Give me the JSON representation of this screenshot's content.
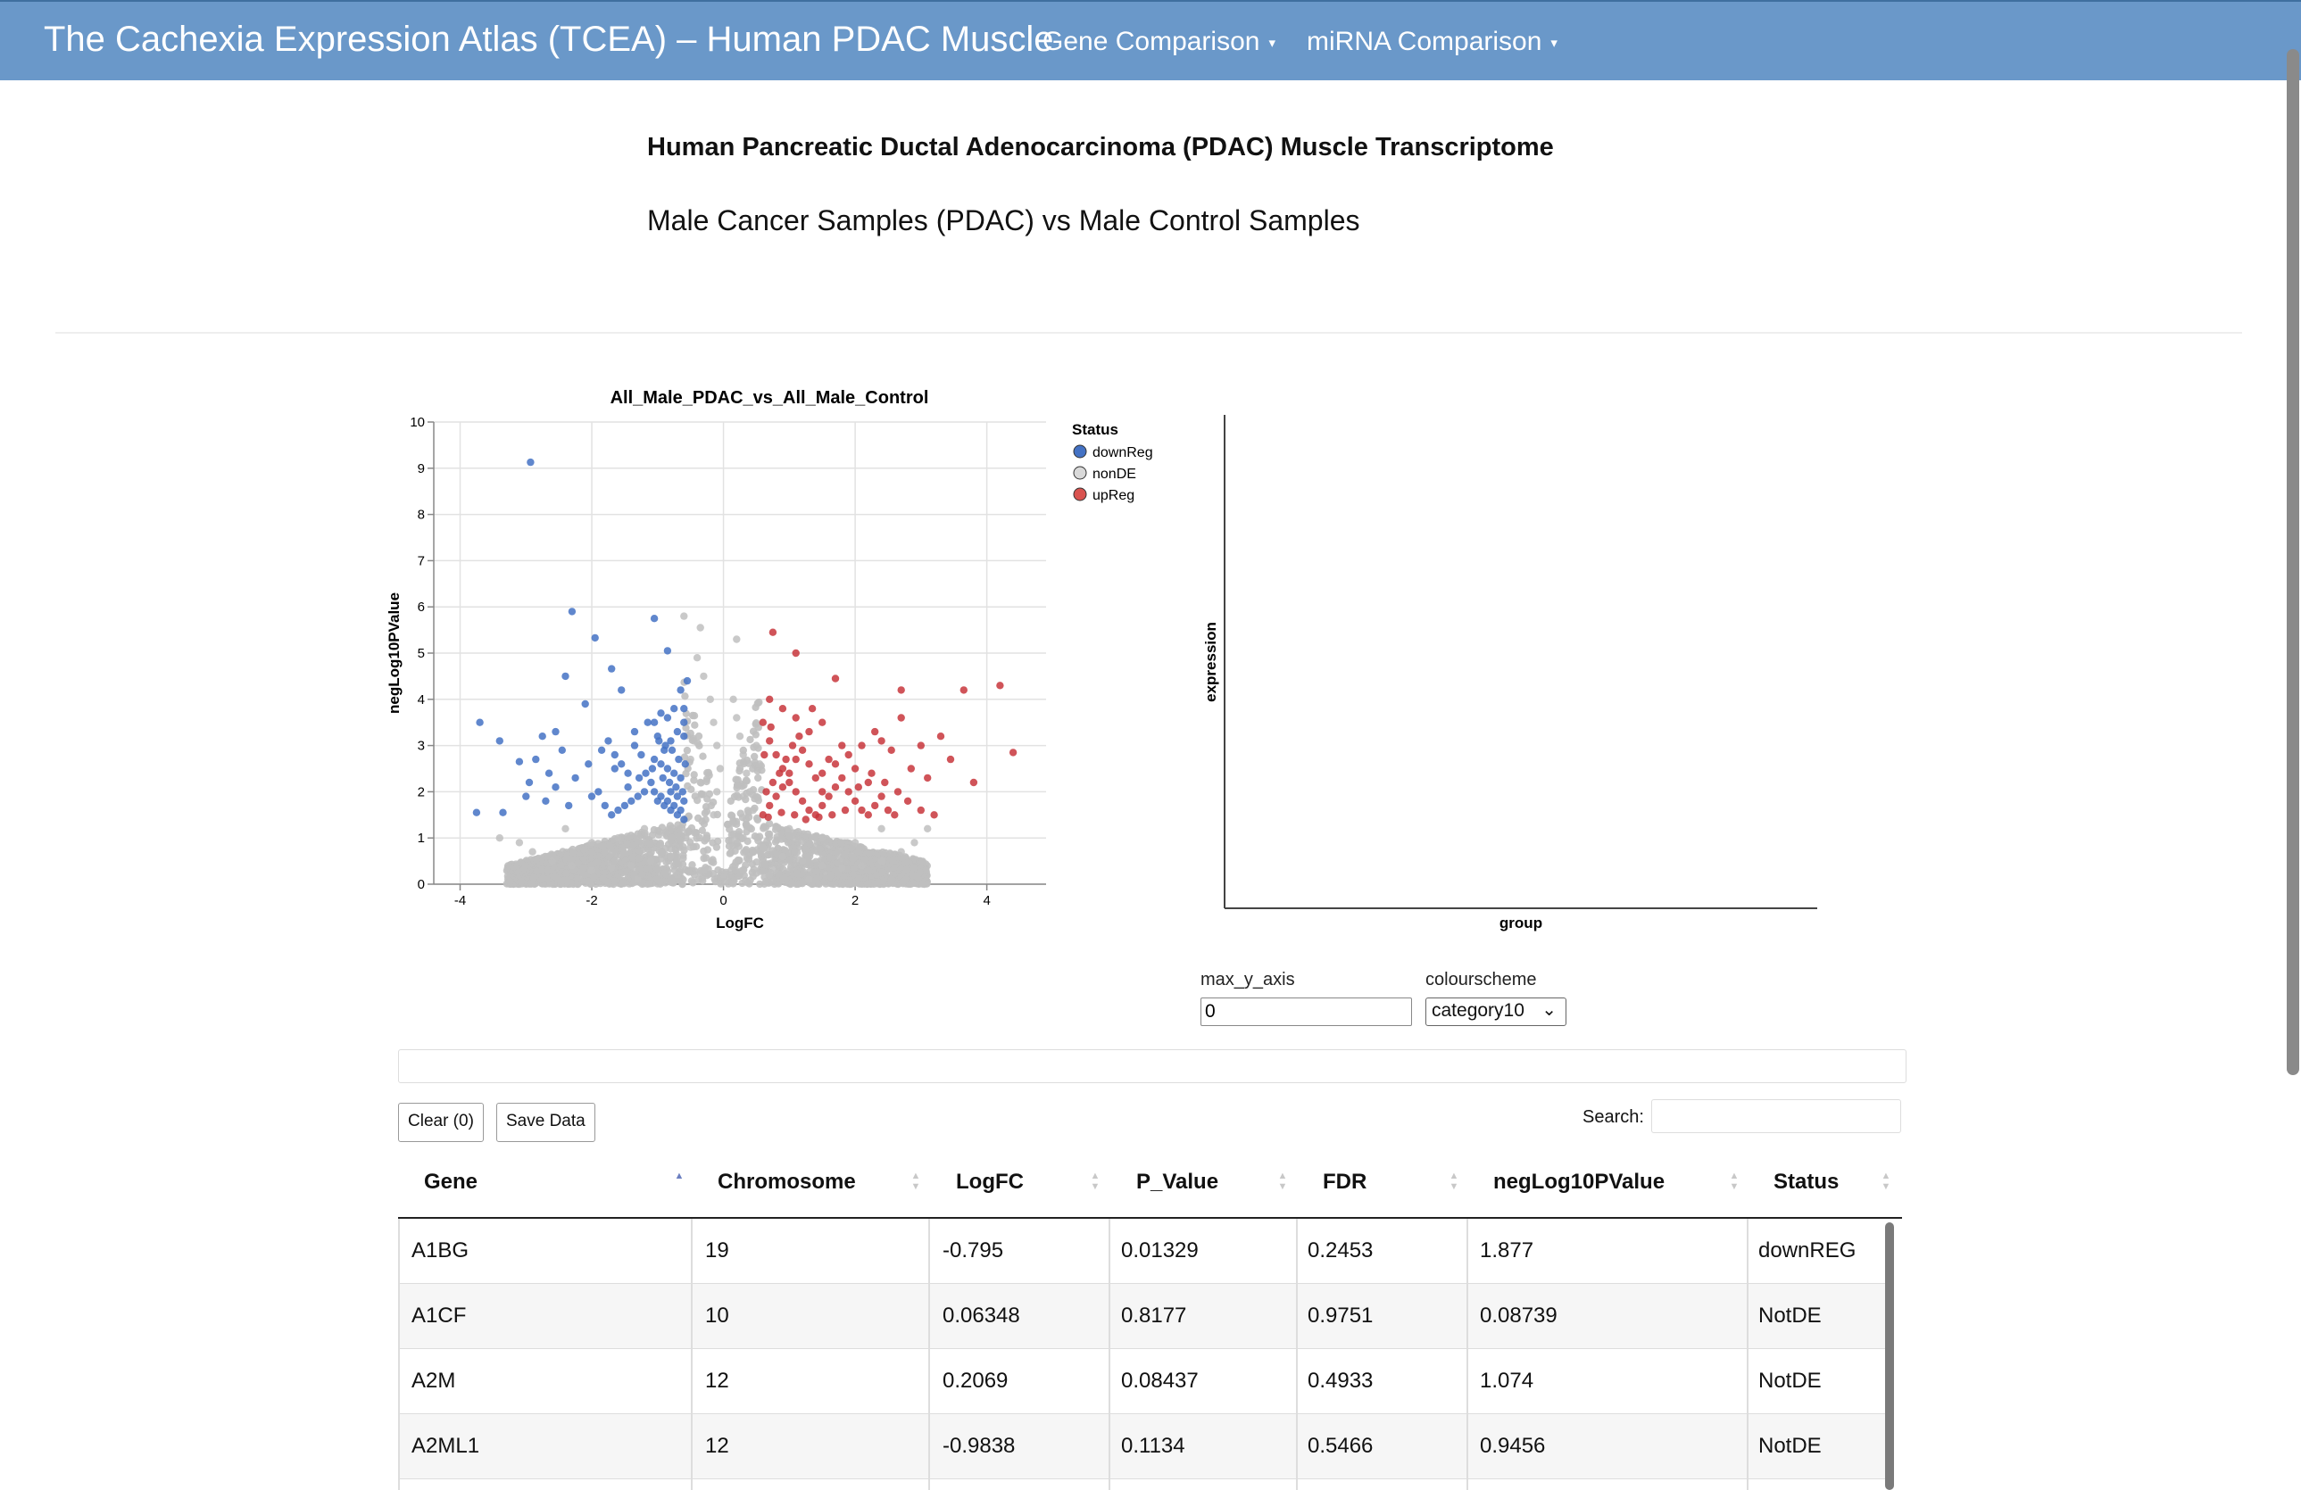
{
  "navbar": {
    "brand": "The Cachexia Expression Atlas (TCEA) – Human PDAC Muscle",
    "menus": [
      "Gene Comparison",
      "miRNA Comparison"
    ],
    "caret": "▾"
  },
  "header": {
    "title": "Human Pancreatic Ductal Adenocarcinoma (PDAC) Muscle Transcriptome",
    "subtitle": "Male Cancer Samples (PDAC) vs Male Control Samples"
  },
  "colors": {
    "navbar": "#6a98c9",
    "downReg": "#4472c4",
    "nonDE": "#bfbfbf",
    "upReg": "#c8363c"
  },
  "chart_data": [
    {
      "type": "scatter",
      "title": "All_Male_PDAC_vs_All_Male_Control",
      "xlabel": "LogFC",
      "ylabel": "negLog10PValue",
      "xlim": [
        -4.4,
        4.9
      ],
      "ylim": [
        0,
        10
      ],
      "xticks": [
        -4,
        -2,
        0,
        2,
        4
      ],
      "yticks": [
        0,
        1,
        2,
        3,
        4,
        5,
        6,
        7,
        8,
        9,
        10
      ],
      "grid": true,
      "legend": {
        "title": "Status",
        "position": "right",
        "entries": [
          "downReg",
          "nonDE",
          "upReg"
        ]
      },
      "series": [
        {
          "name": "downReg",
          "points": [
            [
              -2.93,
              9.13
            ],
            [
              -2.3,
              5.9
            ],
            [
              -1.95,
              5.33
            ],
            [
              -1.7,
              4.66
            ],
            [
              -1.05,
              5.75
            ],
            [
              -0.85,
              5.05
            ],
            [
              -2.4,
              4.5
            ],
            [
              -2.1,
              3.9
            ],
            [
              -1.55,
              4.2
            ],
            [
              -3.7,
              3.5
            ],
            [
              -3.4,
              3.1
            ],
            [
              -3.1,
              2.65
            ],
            [
              -2.95,
              2.2
            ],
            [
              -3.35,
              1.55
            ],
            [
              -3.75,
              1.55
            ],
            [
              -2.7,
              1.8
            ],
            [
              -2.55,
              2.1
            ],
            [
              -2.35,
              1.7
            ],
            [
              -2.75,
              3.2
            ],
            [
              -2.55,
              3.3
            ],
            [
              -2.25,
              2.3
            ],
            [
              -2.05,
              2.6
            ],
            [
              -1.85,
              2.9
            ],
            [
              -1.65,
              2.5
            ],
            [
              -1.45,
              2.1
            ],
            [
              -1.35,
              3.0
            ],
            [
              -1.25,
              2.8
            ],
            [
              -1.15,
              3.5
            ],
            [
              -1.05,
              2.7
            ],
            [
              -0.95,
              2.6
            ],
            [
              -0.85,
              2.5
            ],
            [
              -0.75,
              2.4
            ],
            [
              -0.65,
              2.3
            ],
            [
              -0.6,
              3.2
            ],
            [
              -0.55,
              4.4
            ],
            [
              -0.65,
              4.2
            ],
            [
              -0.75,
              3.8
            ],
            [
              -0.85,
              3.6
            ],
            [
              -0.95,
              3.7
            ],
            [
              -1.0,
              3.2
            ],
            [
              -1.1,
              2.2
            ],
            [
              -1.2,
              2.0
            ],
            [
              -1.3,
              1.9
            ],
            [
              -1.4,
              1.8
            ],
            [
              -1.5,
              1.7
            ],
            [
              -1.6,
              1.6
            ],
            [
              -1.7,
              1.5
            ],
            [
              -1.8,
              1.7
            ],
            [
              -1.9,
              2.0
            ],
            [
              -2.0,
              1.9
            ],
            [
              -0.6,
              1.4
            ],
            [
              -0.7,
              1.5
            ],
            [
              -0.8,
              1.6
            ],
            [
              -0.9,
              1.7
            ],
            [
              -1.0,
              1.8
            ],
            [
              -0.62,
              2.0
            ],
            [
              -0.72,
              2.1
            ],
            [
              -0.82,
              2.2
            ],
            [
              -0.92,
              2.3
            ],
            [
              -0.58,
              2.6
            ],
            [
              -0.68,
              2.7
            ],
            [
              -0.78,
              2.9
            ],
            [
              -0.88,
              3.0
            ],
            [
              -0.98,
              3.1
            ],
            [
              -1.08,
              2.5
            ],
            [
              -1.18,
              2.4
            ],
            [
              -1.28,
              2.3
            ],
            [
              -0.6,
              1.8
            ],
            [
              -0.7,
              1.9
            ],
            [
              -0.8,
              2.0
            ],
            [
              -0.65,
              1.6
            ],
            [
              -0.75,
              1.7
            ],
            [
              -0.85,
              1.8
            ],
            [
              -0.95,
              1.9
            ],
            [
              -1.05,
              2.0
            ],
            [
              -0.6,
              3.5
            ],
            [
              -0.6,
              3.8
            ],
            [
              -0.7,
              3.3
            ],
            [
              -0.8,
              3.1
            ],
            [
              -0.9,
              2.9
            ],
            [
              -1.45,
              2.4
            ],
            [
              -1.55,
              2.6
            ],
            [
              -1.65,
              2.8
            ],
            [
              -1.75,
              3.1
            ],
            [
              -2.45,
              2.9
            ],
            [
              -2.65,
              2.4
            ],
            [
              -2.85,
              2.7
            ],
            [
              -3.0,
              1.9
            ],
            [
              -1.35,
              3.3
            ],
            [
              -1.05,
              3.5
            ]
          ]
        },
        {
          "name": "nonDE",
          "points": [
            [
              -0.6,
              5.8
            ],
            [
              -0.35,
              5.55
            ],
            [
              0.2,
              5.3
            ],
            [
              -0.4,
              4.9
            ],
            [
              -0.3,
              4.5
            ],
            [
              -0.2,
              4.0
            ],
            [
              -0.15,
              3.5
            ],
            [
              -0.1,
              3.0
            ],
            [
              -0.05,
              2.5
            ],
            [
              -0.1,
              2.0
            ],
            [
              -0.15,
              1.5
            ],
            [
              0.15,
              4.0
            ],
            [
              0.2,
              3.6
            ],
            [
              0.25,
              3.2
            ],
            [
              0.3,
              2.8
            ],
            [
              0.35,
              2.4
            ],
            [
              0.4,
              2.0
            ],
            [
              0.45,
              1.6
            ],
            [
              -0.25,
              1.0
            ],
            [
              -0.5,
              0.8
            ],
            [
              -0.8,
              0.6
            ],
            [
              -1.1,
              0.5
            ],
            [
              -1.4,
              0.4
            ],
            [
              -1.7,
              0.35
            ],
            [
              -2.0,
              0.3
            ],
            [
              -2.3,
              0.4
            ],
            [
              -2.6,
              0.5
            ],
            [
              -2.9,
              0.7
            ],
            [
              -3.1,
              0.9
            ],
            [
              -3.4,
              1.0
            ],
            [
              0.3,
              1.0
            ],
            [
              0.6,
              0.8
            ],
            [
              0.9,
              0.6
            ],
            [
              1.2,
              0.5
            ],
            [
              1.5,
              0.4
            ],
            [
              1.8,
              0.35
            ],
            [
              2.1,
              0.4
            ],
            [
              2.4,
              0.5
            ],
            [
              2.7,
              0.7
            ],
            [
              2.9,
              0.9
            ],
            [
              3.1,
              1.2
            ],
            [
              -1.2,
              1.2
            ],
            [
              -1.6,
              1.0
            ],
            [
              -2.0,
              0.9
            ],
            [
              1.0,
              1.2
            ],
            [
              1.5,
              1.0
            ],
            [
              2.0,
              0.9
            ],
            [
              -0.3,
              0.3
            ],
            [
              0.0,
              0.2
            ],
            [
              0.3,
              0.3
            ],
            [
              -0.7,
              0.2
            ],
            [
              0.7,
              0.2
            ],
            [
              -1.3,
              0.1
            ],
            [
              1.3,
              0.1
            ],
            [
              -2.4,
              1.2
            ],
            [
              2.4,
              1.2
            ],
            [
              -0.45,
              3.1
            ],
            [
              0.5,
              3.0
            ],
            [
              0.55,
              2.6
            ],
            [
              -0.5,
              2.7
            ],
            [
              -0.35,
              2.2
            ],
            [
              0.3,
              1.9
            ]
          ]
        },
        {
          "name": "upReg",
          "points": [
            [
              0.75,
              5.45
            ],
            [
              1.1,
              5.0
            ],
            [
              1.7,
              4.45
            ],
            [
              2.7,
              4.2
            ],
            [
              3.65,
              4.2
            ],
            [
              4.2,
              4.3
            ],
            [
              4.4,
              2.85
            ],
            [
              2.7,
              3.6
            ],
            [
              3.3,
              3.2
            ],
            [
              3.0,
              3.0
            ],
            [
              3.45,
              2.7
            ],
            [
              3.8,
              2.2
            ],
            [
              3.1,
              2.3
            ],
            [
              2.55,
              2.9
            ],
            [
              2.4,
              3.1
            ],
            [
              2.3,
              3.3
            ],
            [
              2.1,
              3.0
            ],
            [
              1.9,
              2.8
            ],
            [
              1.7,
              2.6
            ],
            [
              1.5,
              2.4
            ],
            [
              1.3,
              3.3
            ],
            [
              1.1,
              3.6
            ],
            [
              0.9,
              3.8
            ],
            [
              0.7,
              4.0
            ],
            [
              0.6,
              3.5
            ],
            [
              0.7,
              3.1
            ],
            [
              0.8,
              2.8
            ],
            [
              0.9,
              2.5
            ],
            [
              1.0,
              2.2
            ],
            [
              1.1,
              2.0
            ],
            [
              1.2,
              1.8
            ],
            [
              1.3,
              1.6
            ],
            [
              1.4,
              1.5
            ],
            [
              1.5,
              1.7
            ],
            [
              1.6,
              1.9
            ],
            [
              1.7,
              2.1
            ],
            [
              1.8,
              2.3
            ],
            [
              1.9,
              2.0
            ],
            [
              2.0,
              1.8
            ],
            [
              2.1,
              1.6
            ],
            [
              2.2,
              1.5
            ],
            [
              2.3,
              1.7
            ],
            [
              2.4,
              1.9
            ],
            [
              2.5,
              1.6
            ],
            [
              2.6,
              1.5
            ],
            [
              2.8,
              1.8
            ],
            [
              3.0,
              1.6
            ],
            [
              3.2,
              1.5
            ],
            [
              0.6,
              1.5
            ],
            [
              0.7,
              1.7
            ],
            [
              0.8,
              1.9
            ],
            [
              0.9,
              2.1
            ],
            [
              1.0,
              2.4
            ],
            [
              1.1,
              2.7
            ],
            [
              1.2,
              2.9
            ],
            [
              1.3,
              2.6
            ],
            [
              1.4,
              2.3
            ],
            [
              1.5,
              2.0
            ],
            [
              0.65,
              2.0
            ],
            [
              0.75,
              2.2
            ],
            [
              0.85,
              2.4
            ],
            [
              0.95,
              2.7
            ],
            [
              1.05,
              3.0
            ],
            [
              1.15,
              3.2
            ],
            [
              0.62,
              2.8
            ],
            [
              0.72,
              3.4
            ],
            [
              1.6,
              2.7
            ],
            [
              1.8,
              3.0
            ],
            [
              2.0,
              2.5
            ],
            [
              2.2,
              2.2
            ],
            [
              1.25,
              1.4
            ],
            [
              1.45,
              1.45
            ],
            [
              1.65,
              1.5
            ],
            [
              1.85,
              1.6
            ],
            [
              2.05,
              2.1
            ],
            [
              2.25,
              2.4
            ],
            [
              2.45,
              2.2
            ],
            [
              2.65,
              2.0
            ],
            [
              2.85,
              2.5
            ],
            [
              0.68,
              1.45
            ],
            [
              0.88,
              1.55
            ],
            [
              1.08,
              1.5
            ],
            [
              1.35,
              3.8
            ],
            [
              1.5,
              3.5
            ]
          ]
        }
      ]
    },
    {
      "type": "scatter",
      "title": "",
      "xlabel": "group",
      "ylabel": "expression",
      "series": []
    }
  ],
  "controls": {
    "max_y_label": "max_y_axis",
    "max_y_value": "0",
    "colourscheme_label": "colourscheme",
    "colourscheme_value": "category10"
  },
  "table": {
    "clear_label": "Clear (0)",
    "save_label": "Save Data",
    "search_label": "Search:",
    "columns": [
      "Gene",
      "Chromosome",
      "LogFC",
      "P_Value",
      "FDR",
      "negLog10PValue",
      "Status"
    ],
    "rows": [
      [
        "A1BG",
        "19",
        "-0.795",
        "0.01329",
        "0.2453",
        "1.877",
        "downREG"
      ],
      [
        "A1CF",
        "10",
        "0.06348",
        "0.8177",
        "0.9751",
        "0.08739",
        "NotDE"
      ],
      [
        "A2M",
        "12",
        "0.2069",
        "0.08437",
        "0.4933",
        "1.074",
        "NotDE"
      ],
      [
        "A2ML1",
        "12",
        "-0.9838",
        "0.1134",
        "0.5466",
        "0.9456",
        "NotDE"
      ]
    ]
  }
}
